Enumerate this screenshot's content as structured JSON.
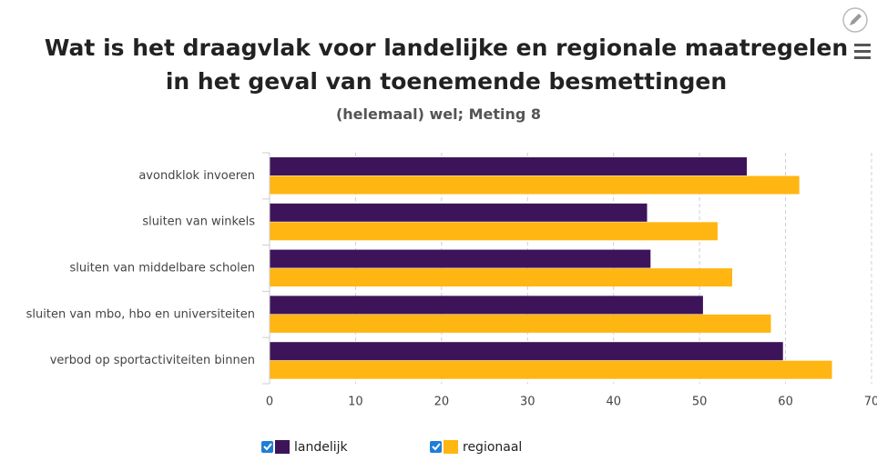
{
  "chart_data": {
    "type": "bar",
    "orientation": "horizontal",
    "title": "Wat is het draagvlak voor landelijke en regionale maatregelen in het geval van toenemende besmettingen",
    "subtitle": "(helemaal) wel; Meting 8",
    "categories": [
      "avondklok invoeren",
      "sluiten van winkels",
      "sluiten van middelbare scholen",
      "sluiten van mbo, hbo en universiteiten",
      "verbod op sportactiviteiten binnen"
    ],
    "series": [
      {
        "name": "landelijk",
        "color": "#3d1459",
        "values": [
          55.5,
          43.9,
          44.3,
          50.4,
          59.7
        ]
      },
      {
        "name": "regionaal",
        "color": "#ffb612",
        "values": [
          61.6,
          52.1,
          53.8,
          58.3,
          65.4
        ]
      }
    ],
    "xlim": [
      0,
      70
    ],
    "xticks": [
      0,
      10,
      20,
      30,
      40,
      50,
      60,
      70
    ],
    "grid": true
  }
}
